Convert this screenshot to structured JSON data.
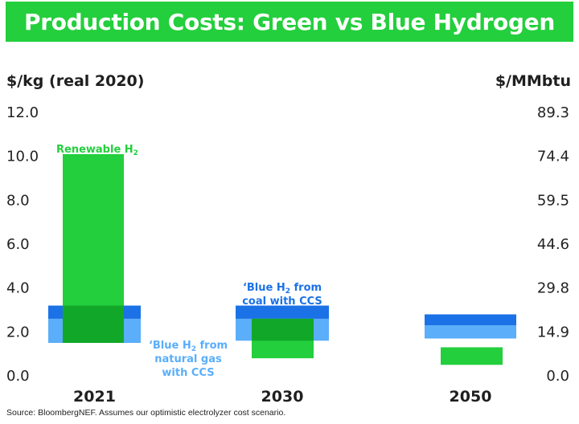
{
  "chart_data": {
    "type": "bar",
    "title": "Production Costs: Green vs Blue Hydrogen",
    "left_axis": {
      "title": "$/kg (real 2020)",
      "ticks": [
        "12.0",
        "10.0",
        "8.0",
        "6.0",
        "4.0",
        "2.0",
        "0.0"
      ],
      "range": [
        0,
        12
      ]
    },
    "right_axis": {
      "title": "$/MMbtu",
      "ticks": [
        "89.3",
        "74.4",
        "59.5",
        "44.6",
        "29.8",
        "14.9",
        "0.0"
      ]
    },
    "categories": [
      "2021",
      "2030",
      "2050"
    ],
    "series": [
      {
        "name": "Renewable H2",
        "color": "#23cf3c",
        "ranges": [
          [
            1.5,
            10.1
          ],
          [
            0.8,
            2.6
          ],
          [
            0.5,
            1.3
          ]
        ]
      },
      {
        "name": "Blue H2 from natural gas with CCS",
        "color": "#5aaefa",
        "ranges": [
          [
            1.5,
            2.6
          ],
          [
            1.6,
            2.6
          ],
          [
            1.7,
            2.3
          ]
        ]
      },
      {
        "name": "Blue H2 from coal with CCS",
        "color": "#1b72e6",
        "ranges": [
          [
            2.6,
            3.2
          ],
          [
            2.6,
            3.2
          ],
          [
            2.3,
            2.8
          ]
        ]
      }
    ],
    "overlap_color": "#11a82a",
    "labels": {
      "renewable": "Renewable H",
      "coal_line1": "‘Blue H",
      "coal_line1_suffix": " from",
      "coal_line2": "coal with CCS",
      "gas_line1": "‘Blue H",
      "gas_line1_suffix": " from",
      "gas_line2": "natural gas",
      "gas_line3": "with CCS",
      "subscript": "2"
    }
  },
  "source": "Source: BloombergNEF. Assumes our optimistic electrolyzer cost scenario."
}
